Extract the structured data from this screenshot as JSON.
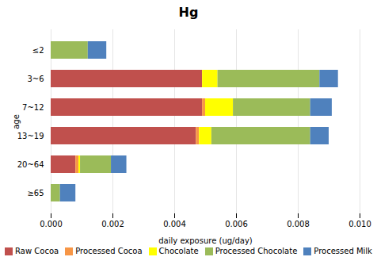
{
  "chart_data": {
    "type": "bar",
    "orientation": "horizontal",
    "stacked": true,
    "title": "Hg",
    "xlabel": "daily exposure (ug/day)",
    "ylabel": "age",
    "categories": [
      "≥65",
      "20~64",
      "13~19",
      "7~12",
      "3~6",
      "≤2"
    ],
    "series": [
      {
        "name": "Raw Cocoa",
        "color": "#C0504D",
        "values": [
          0.0,
          0.0008,
          0.0047,
          0.0049,
          0.0049,
          0.0
        ]
      },
      {
        "name": "Processed Cocoa",
        "color": "#F79646",
        "values": [
          0.0,
          0.0001,
          0.0001,
          0.0001,
          0.0,
          0.0
        ]
      },
      {
        "name": "Chocolate",
        "color": "#FFFF00",
        "values": [
          0.0,
          5e-05,
          0.0004,
          0.0009,
          0.0005,
          0.0
        ]
      },
      {
        "name": "Processed Chocolate",
        "color": "#9BBB59",
        "values": [
          0.0003,
          0.001,
          0.0032,
          0.0025,
          0.0033,
          0.0012
        ]
      },
      {
        "name": "Processed Milk",
        "color": "#4F81BD",
        "values": [
          0.0005,
          0.0005,
          0.0006,
          0.0007,
          0.0006,
          0.0006
        ]
      }
    ],
    "xlim": [
      0,
      0.01
    ],
    "xticks": [
      {
        "value": 0.0,
        "label": "0.000"
      },
      {
        "value": 0.002,
        "label": "0.002"
      },
      {
        "value": 0.004,
        "label": "0.004"
      },
      {
        "value": 0.006,
        "label": "0.006"
      },
      {
        "value": 0.008,
        "label": "0.008"
      },
      {
        "value": 0.01,
        "label": "0.010"
      }
    ],
    "grid": true,
    "legend": "bottom"
  }
}
